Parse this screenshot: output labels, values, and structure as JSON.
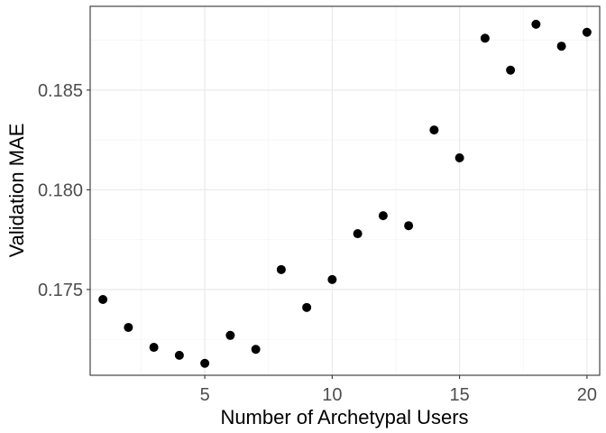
{
  "chart_data": {
    "type": "scatter",
    "xlabel": "Number of Archetypal Users",
    "ylabel": "Validation MAE",
    "xlim": [
      0.5,
      20.5
    ],
    "ylim": [
      0.1707,
      0.1892
    ],
    "x_ticks": [
      5,
      10,
      15,
      20
    ],
    "x_tick_labels": [
      "5",
      "10",
      "15",
      "20"
    ],
    "y_ticks": [
      0.175,
      0.18,
      0.185
    ],
    "y_tick_labels": [
      "0.175",
      "0.180",
      "0.185"
    ],
    "grid": true,
    "legend": "none",
    "point_color": "#000000",
    "x": [
      1,
      2,
      3,
      4,
      5,
      6,
      7,
      8,
      9,
      10,
      11,
      12,
      13,
      14,
      15,
      16,
      17,
      18,
      19,
      20
    ],
    "y": [
      0.1745,
      0.1731,
      0.1721,
      0.1717,
      0.1713,
      0.1727,
      0.172,
      0.176,
      0.1741,
      0.1755,
      0.1778,
      0.1787,
      0.1782,
      0.183,
      0.1816,
      0.1876,
      0.186,
      0.1883,
      0.1872,
      0.1879
    ]
  }
}
